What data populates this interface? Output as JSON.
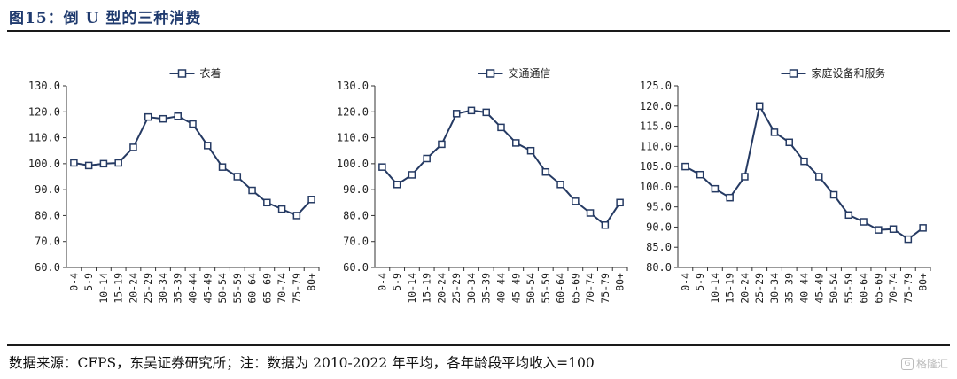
{
  "figure": {
    "title": "图15：倒 U 型的三种消费",
    "footer": "数据来源：CFPS，东吴证券研究所；注：数据为 2010-2022 年平均，各年龄段平均收入=100",
    "watermark": "格隆汇",
    "line_color": "#253a63"
  },
  "chart_data": [
    {
      "type": "line",
      "title": "",
      "legend": "衣着",
      "categories": [
        "0-4",
        "5-9",
        "10-14",
        "15-19",
        "20-24",
        "25-29",
        "30-34",
        "35-39",
        "40-44",
        "45-49",
        "50-54",
        "55-59",
        "60-64",
        "65-69",
        "70-74",
        "75-79",
        "80+"
      ],
      "values": [
        100.3,
        99.3,
        100.0,
        100.3,
        106.3,
        118.0,
        117.3,
        118.3,
        115.3,
        107.0,
        98.7,
        95.0,
        89.7,
        85.0,
        82.5,
        80.0,
        86.2
      ],
      "ylim": [
        60,
        130
      ],
      "ytick_labels": [
        "60.0",
        "70.0",
        "80.0",
        "90.0",
        "100.0",
        "110.0",
        "120.0",
        "130.0"
      ],
      "xlabel": "",
      "ylabel": ""
    },
    {
      "type": "line",
      "title": "",
      "legend": "交通通信",
      "categories": [
        "0-4",
        "5-9",
        "10-14",
        "15-19",
        "20-24",
        "25-29",
        "30-34",
        "35-39",
        "40-44",
        "45-49",
        "50-54",
        "55-59",
        "60-64",
        "65-69",
        "70-74",
        "75-79",
        "80+"
      ],
      "values": [
        98.7,
        92.0,
        95.7,
        102.0,
        107.5,
        119.3,
        120.5,
        119.8,
        114.0,
        108.0,
        105.0,
        96.8,
        92.0,
        85.5,
        81.0,
        76.3,
        85.0
      ],
      "ylim": [
        60,
        130
      ],
      "ytick_labels": [
        "60.0",
        "70.0",
        "80.0",
        "90.0",
        "100.0",
        "110.0",
        "120.0",
        "130.0"
      ],
      "xlabel": "",
      "ylabel": ""
    },
    {
      "type": "line",
      "title": "",
      "legend": "家庭设备和服务",
      "categories": [
        "0-4",
        "5-9",
        "10-14",
        "15-19",
        "20-24",
        "25-29",
        "30-34",
        "35-39",
        "40-44",
        "45-49",
        "50-54",
        "55-59",
        "60-64",
        "65-69",
        "70-74",
        "75-79",
        "80+"
      ],
      "values": [
        105.0,
        103.0,
        99.5,
        97.3,
        102.5,
        120.0,
        113.5,
        111.0,
        106.3,
        102.5,
        98.0,
        93.0,
        91.3,
        89.3,
        89.5,
        87.0,
        89.8
      ],
      "ylim": [
        80,
        125
      ],
      "ytick_labels": [
        "80.0",
        "85.0",
        "90.0",
        "95.0",
        "100.0",
        "105.0",
        "110.0",
        "115.0",
        "120.0",
        "125.0"
      ],
      "xlabel": "",
      "ylabel": ""
    }
  ]
}
